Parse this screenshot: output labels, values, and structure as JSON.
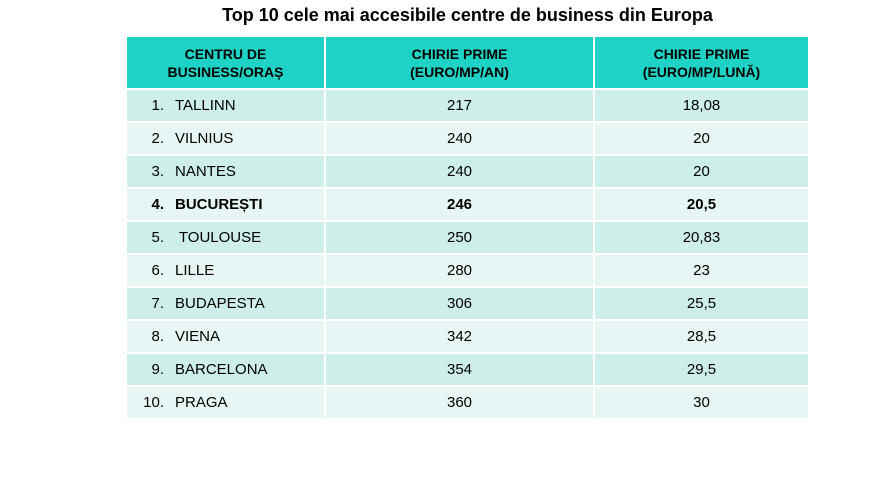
{
  "chart_data": {
    "type": "table",
    "title": "Top 10 cele mai accesibile centre de business din Europa",
    "columns": [
      "CENTRU DE\nBUSINESS/ORAȘ",
      "CHIRIE PRIME\n(EURO/MP/AN)",
      "CHIRIE PRIME\n(EURO/MP/LUNĂ)"
    ],
    "rows": [
      {
        "rank": "1.",
        "city": "TALLINN",
        "annual": "217",
        "monthly": "18,08"
      },
      {
        "rank": "2.",
        "city": "VILNIUS",
        "annual": "240",
        "monthly": "20"
      },
      {
        "rank": "3.",
        "city": "NANTES",
        "annual": "240",
        "monthly": "20"
      },
      {
        "rank": "4.",
        "city": "BUCUREȘTI",
        "annual": "246",
        "monthly": "20,5",
        "highlight": true
      },
      {
        "rank": "5.",
        "city": " TOULOUSE",
        "annual": "250",
        "monthly": "20,83"
      },
      {
        "rank": "6.",
        "city": "LILLE",
        "annual": "280",
        "monthly": "23"
      },
      {
        "rank": "7.",
        "city": "BUDAPESTA",
        "annual": "306",
        "monthly": "25,5"
      },
      {
        "rank": "8.",
        "city": "VIENA",
        "annual": "342",
        "monthly": "28,5"
      },
      {
        "rank": "9.",
        "city": "BARCELONA",
        "annual": "354",
        "monthly": "29,5"
      },
      {
        "rank": "10.",
        "city": "PRAGA",
        "annual": "360",
        "monthly": "30"
      }
    ]
  },
  "colors": {
    "header_bg": "#1ed3c5",
    "row_odd_bg": "#cdeee9",
    "row_even_bg": "#e7f6f4"
  }
}
